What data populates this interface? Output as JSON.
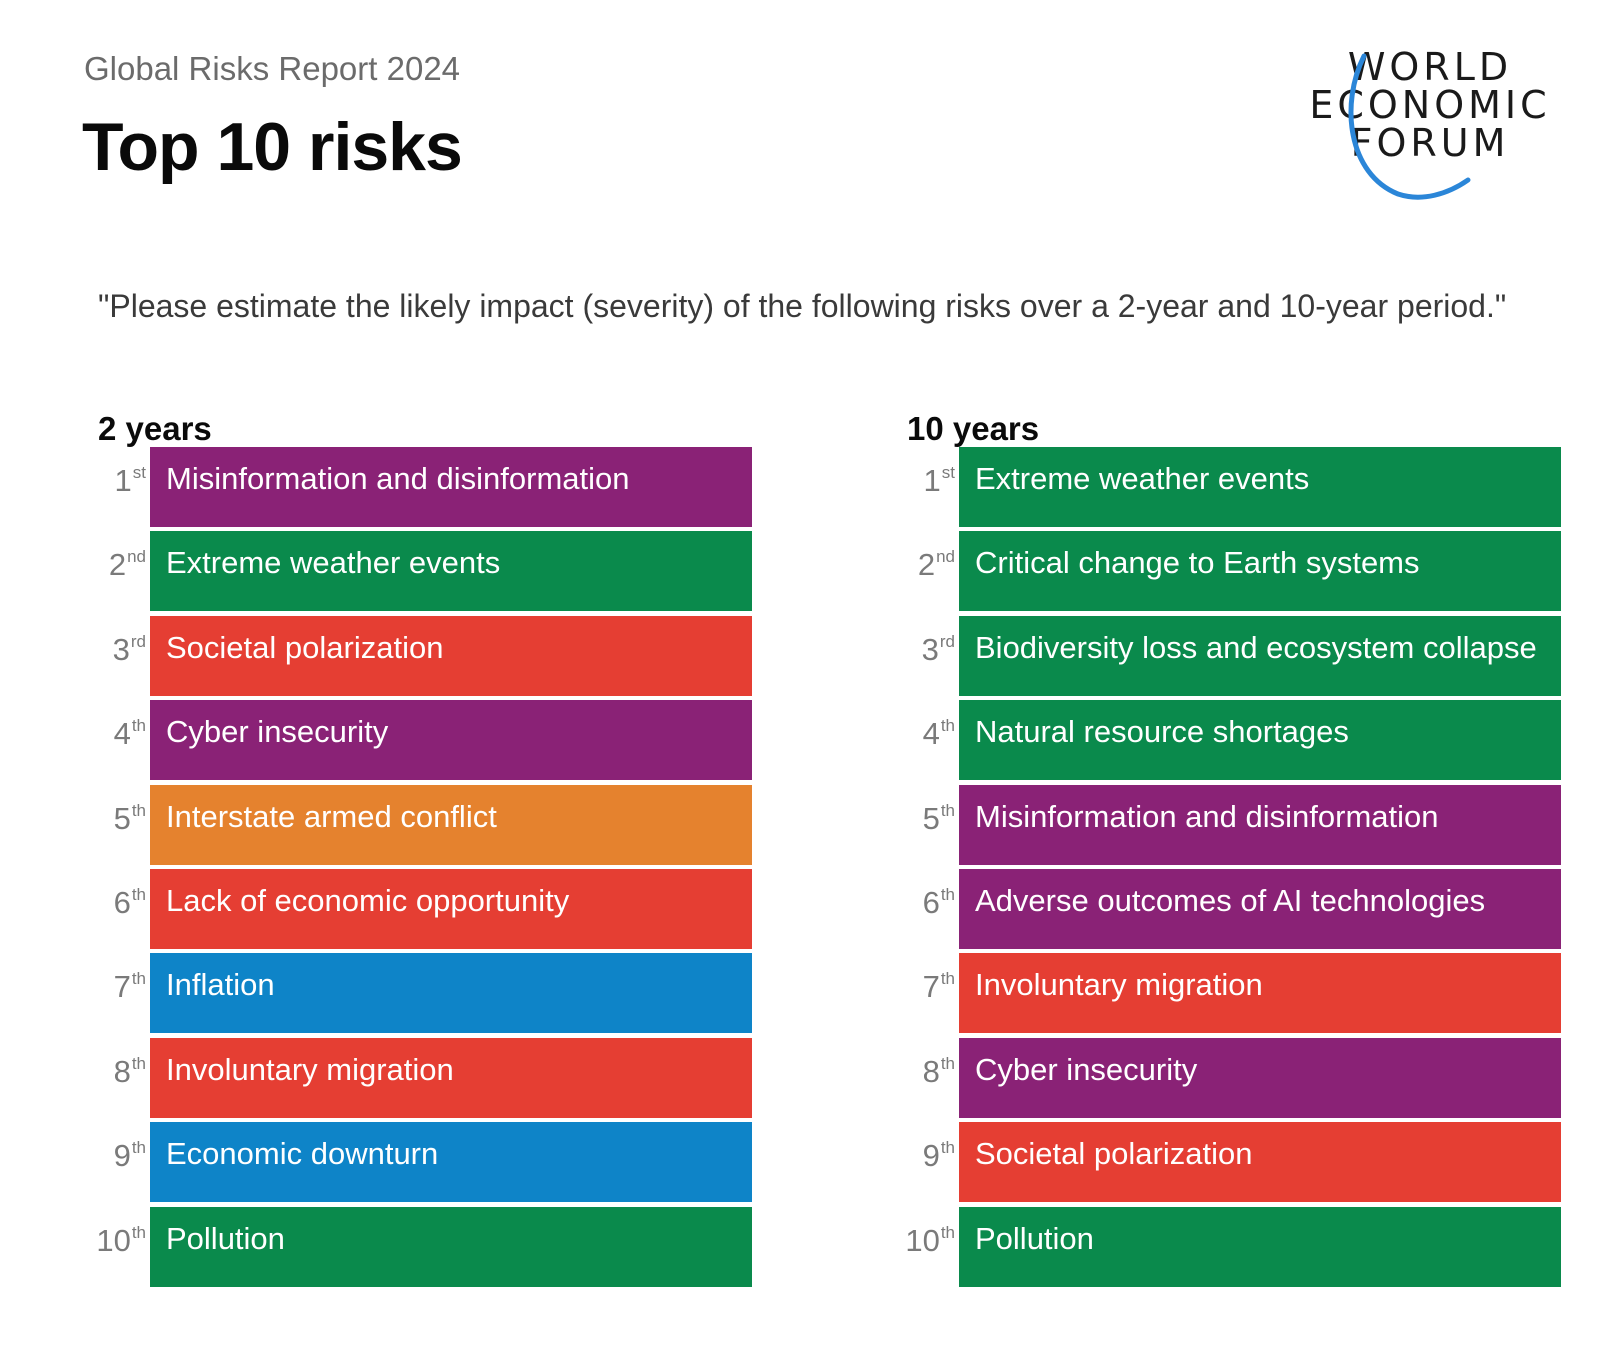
{
  "header": {
    "report_name": "Global Risks Report 2024",
    "title": "Top 10 risks",
    "logo_lines": [
      "WORLD",
      "ECONOMIC",
      "FORUM"
    ]
  },
  "question": "\"Please estimate the likely impact (severity) of the following risks over a 2-year and 10-year period.\"",
  "colors": {
    "economic": "#0e84c8",
    "environmental": "#0a8a4c",
    "geopolitical": "#e5822e",
    "societal": "#e53e33",
    "technological": "#8a2276",
    "logo_arc": "#2b86d8"
  },
  "columns": [
    {
      "heading": "2 years",
      "risks": [
        {
          "rank": "1",
          "suffix": "st",
          "label": "Misinformation and disinformation",
          "color": "#8a2276"
        },
        {
          "rank": "2",
          "suffix": "nd",
          "label": "Extreme weather events",
          "color": "#0a8a4c"
        },
        {
          "rank": "3",
          "suffix": "rd",
          "label": "Societal polarization",
          "color": "#e53e33"
        },
        {
          "rank": "4",
          "suffix": "th",
          "label": "Cyber insecurity",
          "color": "#8a2276"
        },
        {
          "rank": "5",
          "suffix": "th",
          "label": "Interstate armed conflict",
          "color": "#e5822e"
        },
        {
          "rank": "6",
          "suffix": "th",
          "label": "Lack of economic opportunity",
          "color": "#e53e33"
        },
        {
          "rank": "7",
          "suffix": "th",
          "label": "Inflation",
          "color": "#0e84c8"
        },
        {
          "rank": "8",
          "suffix": "th",
          "label": "Involuntary migration",
          "color": "#e53e33"
        },
        {
          "rank": "9",
          "suffix": "th",
          "label": "Economic downturn",
          "color": "#0e84c8"
        },
        {
          "rank": "10",
          "suffix": "th",
          "label": "Pollution",
          "color": "#0a8a4c"
        }
      ]
    },
    {
      "heading": "10 years",
      "risks": [
        {
          "rank": "1",
          "suffix": "st",
          "label": "Extreme weather events",
          "color": "#0a8a4c"
        },
        {
          "rank": "2",
          "suffix": "nd",
          "label": "Critical change to Earth systems",
          "color": "#0a8a4c"
        },
        {
          "rank": "3",
          "suffix": "rd",
          "label": "Biodiversity loss and ecosystem collapse",
          "color": "#0a8a4c"
        },
        {
          "rank": "4",
          "suffix": "th",
          "label": "Natural resource shortages",
          "color": "#0a8a4c"
        },
        {
          "rank": "5",
          "suffix": "th",
          "label": "Misinformation and disinformation",
          "color": "#8a2276"
        },
        {
          "rank": "6",
          "suffix": "th",
          "label": "Adverse outcomes of AI technologies",
          "color": "#8a2276"
        },
        {
          "rank": "7",
          "suffix": "th",
          "label": "Involuntary migration",
          "color": "#e53e33"
        },
        {
          "rank": "8",
          "suffix": "th",
          "label": "Cyber insecurity",
          "color": "#8a2276"
        },
        {
          "rank": "9",
          "suffix": "th",
          "label": "Societal polarization",
          "color": "#e53e33"
        },
        {
          "rank": "10",
          "suffix": "th",
          "label": "Pollution",
          "color": "#0a8a4c"
        }
      ]
    }
  ]
}
